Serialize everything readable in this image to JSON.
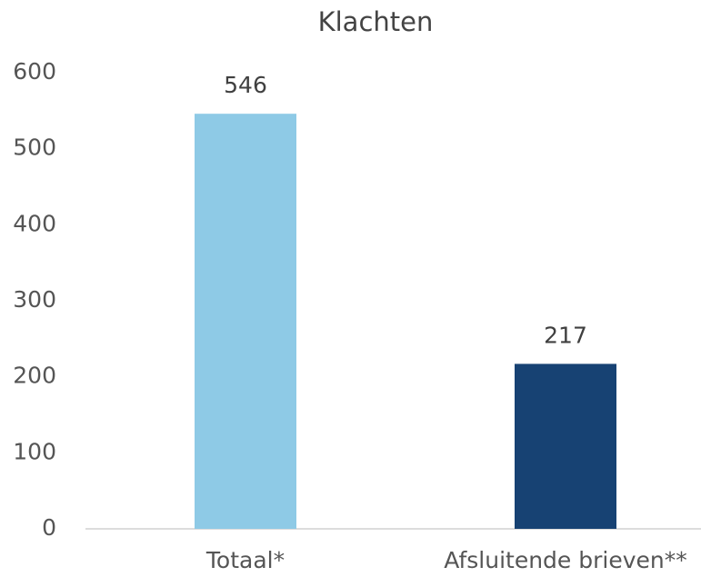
{
  "chart_data": {
    "type": "bar",
    "title": "Klachten",
    "categories": [
      "Totaal*",
      "Afsluitende brieven**"
    ],
    "values": [
      546,
      217
    ],
    "colors": [
      "#8ecae6",
      "#174273"
    ],
    "ylim": [
      0,
      600
    ],
    "yticks": [
      0,
      100,
      200,
      300,
      400,
      500,
      600
    ],
    "grid": false
  }
}
